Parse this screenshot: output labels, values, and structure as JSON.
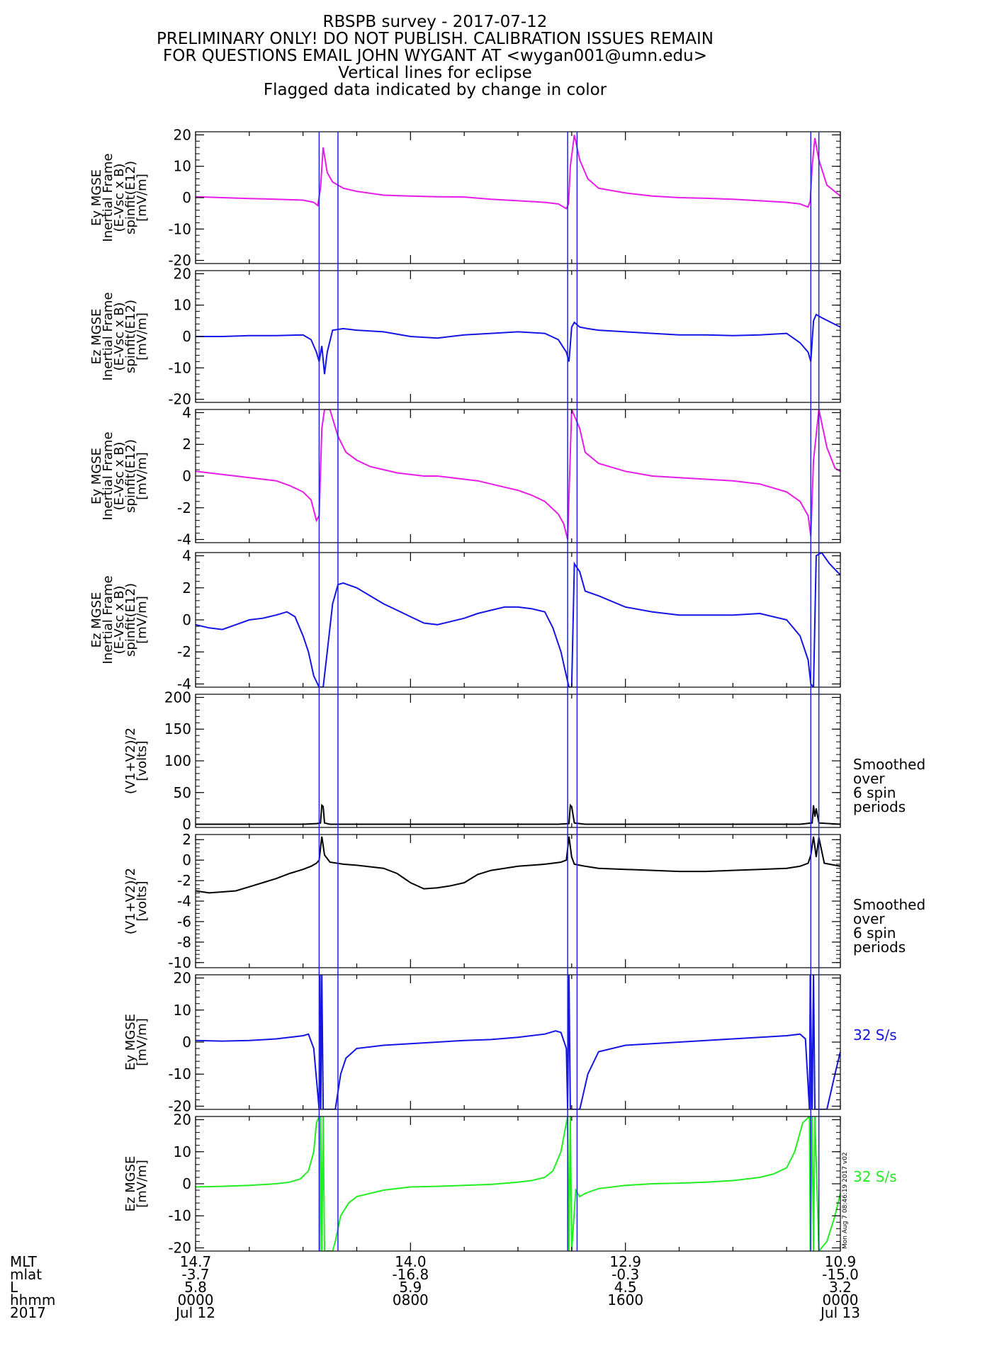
{
  "title_lines": [
    "RBSPB survey - 2017-07-12",
    "PRELIMINARY ONLY! DO NOT PUBLISH. CALIBRATION ISSUES REMAIN",
    "FOR QUESTIONS EMAIL JOHN WYGANT AT <wygan001@umn.edu>",
    "Vertical lines for eclipse",
    "Flagged data indicated by change in color"
  ],
  "time_axis": {
    "range_hours": [
      0,
      24
    ],
    "label_rows": [
      "MLT",
      "mlat",
      "L",
      "hhmm",
      "2017"
    ],
    "ticks": [
      {
        "hour": 0,
        "values": [
          "14.7",
          "-3.7",
          "5.8",
          "0000",
          "Jul 12"
        ]
      },
      {
        "hour": 8,
        "values": [
          "14.0",
          "-16.8",
          "5.9",
          "0800",
          ""
        ]
      },
      {
        "hour": 16,
        "values": [
          "12.9",
          "-0.3",
          "4.5",
          "1600",
          ""
        ]
      },
      {
        "hour": 24,
        "values": [
          "10.9",
          "-15.0",
          "3.2",
          "0000",
          "Jul 13"
        ]
      }
    ]
  },
  "eclipse_color": "#2020e0",
  "eclipse_hours": [
    4.6,
    5.3,
    13.85,
    14.2,
    22.9,
    23.2
  ],
  "stamp": "Mon Aug  7 08:46:19 2017 v02",
  "chart_data": [
    {
      "type": "line",
      "color": "#e81ce8",
      "ylabel": [
        "Ey MGSE",
        "Inertial Frame",
        "(E-Vsc x B)",
        "spinfit(E12)",
        "[mV/m]"
      ],
      "ylim": [
        -21,
        21
      ],
      "ticks": [
        -20,
        -10,
        0,
        10,
        20
      ],
      "note": "",
      "note_color": "",
      "series": [
        {
          "x": [
            0,
            1,
            2,
            3,
            4,
            4.4,
            4.55,
            4.65,
            4.75,
            4.9,
            5.1,
            5.5,
            6,
            7,
            8,
            9,
            10,
            11,
            12,
            13,
            13.5,
            13.8,
            13.88,
            13.95,
            14.1,
            14.3,
            14.6,
            15,
            16,
            17,
            18,
            19,
            20,
            21,
            22,
            22.5,
            22.8,
            22.88,
            22.95,
            23.05,
            23.2,
            23.5,
            24
          ],
          "y": [
            0.3,
            0,
            -0.3,
            -0.5,
            -0.8,
            -1.5,
            -2.5,
            3,
            16,
            8,
            5,
            3,
            2,
            0.8,
            0.5,
            0.3,
            0.2,
            -0.5,
            -1,
            -1.5,
            -2,
            -3.5,
            -2,
            10,
            20,
            12,
            6,
            3,
            1.5,
            0.5,
            0,
            -0.2,
            -0.5,
            -1,
            -1.5,
            -2,
            -3,
            -1,
            10,
            19,
            12,
            4,
            0.5
          ]
        }
      ]
    },
    {
      "type": "line",
      "color": "#1414e6",
      "ylabel": [
        "Ez MGSE",
        "Inertial Frame",
        "(E-Vsc x B)",
        "spinfit(E12)",
        "[mV/m]"
      ],
      "ylim": [
        -21,
        21
      ],
      "ticks": [
        -20,
        -10,
        0,
        10,
        20
      ],
      "note": "",
      "note_color": "",
      "series": [
        {
          "x": [
            0,
            1,
            2,
            3,
            4,
            4.3,
            4.5,
            4.6,
            4.7,
            4.8,
            4.9,
            5.1,
            5.5,
            6,
            7,
            8,
            9,
            10,
            11,
            12,
            13,
            13.5,
            13.8,
            13.9,
            14.0,
            14.1,
            14.3,
            14.6,
            15,
            16,
            17,
            18,
            19,
            20,
            21,
            22,
            22.5,
            22.8,
            22.9,
            23.0,
            23.1,
            23.3,
            24
          ],
          "y": [
            0,
            0,
            0.3,
            0.3,
            0.5,
            -1,
            -5,
            -8,
            -3,
            -12,
            -5,
            2,
            2.5,
            2,
            1.5,
            0,
            -0.5,
            0.5,
            1,
            1.5,
            1,
            -1,
            -5,
            -8,
            3,
            4.5,
            3,
            2.5,
            2,
            1.5,
            1,
            0.5,
            0.5,
            0.3,
            0.5,
            1,
            -2,
            -5,
            -8,
            5,
            7,
            6,
            3
          ]
        }
      ]
    },
    {
      "type": "line",
      "color": "#e81ce8",
      "ylabel": [
        "Ey MGSE",
        "Inertial Frame",
        "(E-Vsc x B)",
        "spinfit(E12)",
        "[mV/m]"
      ],
      "ylim": [
        -4.2,
        4.2
      ],
      "ticks": [
        -4,
        -2,
        0,
        2,
        4
      ],
      "note": "",
      "note_color": "",
      "series": [
        {
          "x": [
            0,
            0.5,
            1,
            1.5,
            2,
            2.5,
            3,
            3.5,
            4,
            4.3,
            4.5,
            4.6,
            4.7,
            4.8,
            5.0,
            5.3,
            5.6,
            6,
            6.5,
            7,
            7.5,
            8,
            8.5,
            9,
            9.5,
            10,
            10.5,
            11,
            11.5,
            12,
            12.5,
            13,
            13.5,
            13.7,
            13.85,
            14.0,
            14.3,
            14.5,
            15,
            16,
            17,
            18,
            19,
            20,
            21,
            22,
            22.5,
            22.8,
            22.9,
            23.0,
            23.2,
            23.5,
            23.8,
            24
          ],
          "y": [
            0.3,
            0.2,
            0.1,
            0,
            -0.1,
            -0.2,
            -0.3,
            -0.6,
            -1,
            -1.5,
            -2.8,
            -2.5,
            3,
            4.2,
            4.2,
            2.5,
            1.5,
            1,
            0.6,
            0.4,
            0.2,
            0.1,
            0,
            0,
            -0.1,
            -0.2,
            -0.3,
            -0.5,
            -0.7,
            -0.9,
            -1.2,
            -1.6,
            -2.4,
            -3,
            -4,
            4.2,
            3,
            1.5,
            0.8,
            0.3,
            0,
            -0.1,
            -0.2,
            -0.3,
            -0.5,
            -1,
            -1.6,
            -2.5,
            -3.8,
            1,
            4.2,
            1.8,
            0.5,
            0.3
          ]
        }
      ]
    },
    {
      "type": "line",
      "color": "#1414e6",
      "ylabel": [
        "Ez MGSE",
        "Inertial Frame",
        "(E-Vsc x B)",
        "spinfit(E12)",
        "[mV/m]"
      ],
      "ylim": [
        -4.2,
        4.2
      ],
      "ticks": [
        -4,
        -2,
        0,
        2,
        4
      ],
      "note": "",
      "note_color": "",
      "series": [
        {
          "x": [
            0,
            0.5,
            1,
            1.5,
            2,
            2.5,
            3,
            3.4,
            3.7,
            4,
            4.2,
            4.4,
            4.6,
            4.75,
            4.9,
            5.1,
            5.3,
            5.5,
            6,
            6.5,
            7,
            7.5,
            8,
            8.5,
            9,
            9.5,
            10,
            10.5,
            11,
            11.5,
            12,
            12.5,
            13,
            13.3,
            13.6,
            13.8,
            13.9,
            14.0,
            14.1,
            14.3,
            14.5,
            15,
            16,
            17,
            18,
            19,
            20,
            21,
            22,
            22.5,
            22.8,
            22.9,
            23.0,
            23.1,
            23.3,
            23.6,
            24
          ],
          "y": [
            -0.3,
            -0.5,
            -0.6,
            -0.3,
            0,
            0.1,
            0.3,
            0.5,
            0.2,
            -1,
            -2,
            -3.5,
            -4.2,
            -4.2,
            -2,
            1,
            2.2,
            2.3,
            2,
            1.5,
            1,
            0.6,
            0.2,
            -0.2,
            -0.3,
            -0.1,
            0.1,
            0.4,
            0.6,
            0.8,
            0.8,
            0.7,
            0.5,
            -0.5,
            -2,
            -3.5,
            -4.2,
            -4.2,
            3.5,
            3,
            1.8,
            1.5,
            0.8,
            0.5,
            0.3,
            0.3,
            0.3,
            0.4,
            0,
            -1,
            -2.5,
            -4,
            -4.2,
            4,
            4.2,
            3.5,
            2.8
          ]
        }
      ]
    },
    {
      "type": "line",
      "color": "#000000",
      "ylabel": [
        "(V1+V2)/2",
        "[volts]"
      ],
      "ylim": [
        -5,
        205
      ],
      "ticks": [
        0,
        50,
        100,
        150,
        200
      ],
      "note": "Smoothed over 6 spin periods",
      "note_color": "#000000",
      "series": [
        {
          "x": [
            0,
            4,
            4.5,
            4.65,
            4.7,
            4.75,
            4.8,
            5,
            8,
            12,
            13.5,
            13.9,
            13.95,
            14.0,
            14.1,
            14.5,
            20,
            22.5,
            22.95,
            23.0,
            23.05,
            23.1,
            23.2,
            24
          ],
          "y": [
            0,
            0,
            1,
            2,
            30,
            28,
            2,
            0,
            0,
            0,
            0,
            1,
            30,
            28,
            2,
            0,
            0,
            0,
            2,
            30,
            12,
            25,
            2,
            0
          ]
        }
      ]
    },
    {
      "type": "line",
      "color": "#000000",
      "ylabel": [
        "(V1+V2)/2",
        "[volts]"
      ],
      "ylim": [
        -10.5,
        2.5
      ],
      "ticks": [
        -10,
        -8,
        -6,
        -4,
        -2,
        0,
        2
      ],
      "note": "Smoothed over 6 spin periods",
      "note_color": "#000000",
      "series": [
        {
          "x": [
            0,
            0.5,
            1,
            1.5,
            2,
            2.5,
            3,
            3.5,
            4,
            4.3,
            4.5,
            4.6,
            4.7,
            4.8,
            5,
            5.5,
            6,
            7,
            7.5,
            8,
            8.5,
            9,
            9.5,
            10,
            10.5,
            11,
            11.5,
            12,
            12.5,
            13,
            13.3,
            13.6,
            13.8,
            13.9,
            14.0,
            14.1,
            14.3,
            14.5,
            15,
            16,
            17,
            18,
            19,
            20,
            21,
            22,
            22.5,
            22.8,
            22.9,
            23.0,
            23.1,
            23.2,
            23.4,
            24
          ],
          "y": [
            -3,
            -3.2,
            -3.1,
            -3,
            -2.6,
            -2.2,
            -1.8,
            -1.3,
            -0.9,
            -0.6,
            -0.3,
            0,
            2.3,
            0.5,
            -0.2,
            -0.4,
            -0.5,
            -0.8,
            -1.3,
            -2.2,
            -2.8,
            -2.7,
            -2.5,
            -2.2,
            -1.4,
            -1.0,
            -0.8,
            -0.6,
            -0.5,
            -0.4,
            -0.3,
            -0.2,
            0,
            2.3,
            0.3,
            -0.4,
            -0.5,
            -0.6,
            -0.8,
            -0.9,
            -1.0,
            -1.1,
            -1.1,
            -1.0,
            -0.9,
            -0.8,
            -0.6,
            -0.3,
            0.5,
            2.3,
            0.3,
            2.2,
            -0.3,
            -0.6
          ]
        }
      ]
    },
    {
      "type": "line",
      "color": "#1414e6",
      "ylabel": [
        "Ey MGSE",
        "[mV/m]"
      ],
      "ylim": [
        -21,
        21
      ],
      "ticks": [
        -20,
        -10,
        0,
        10,
        20
      ],
      "note": "32 S/s",
      "note_color": "#1414e6",
      "series": [
        {
          "x": [
            0,
            1,
            2,
            3,
            4,
            4.2,
            4.4,
            4.6,
            4.63,
            4.66,
            4.7,
            4.75,
            4.8,
            5.2,
            5.4,
            5.6,
            6,
            7,
            8,
            9,
            10,
            11,
            12,
            13,
            13.4,
            13.6,
            13.8,
            13.85,
            13.9,
            13.95,
            14.3,
            14.6,
            15,
            16,
            17,
            18,
            19,
            20,
            21,
            22,
            22.5,
            22.7,
            22.85,
            22.88,
            22.95,
            23.0,
            23.05,
            23.5,
            23.8,
            24
          ],
          "y": [
            0.5,
            0.3,
            0.5,
            1,
            2,
            2.5,
            -2,
            -21,
            21,
            -21,
            21,
            -21,
            -21,
            -21,
            -10,
            -5,
            -2,
            -1,
            -0.5,
            0,
            0.5,
            0.8,
            1.5,
            2.5,
            3.5,
            3,
            -2,
            -21,
            21,
            -21,
            -21,
            -10,
            -3,
            -1,
            -0.5,
            0,
            0.5,
            1,
            1.5,
            2,
            2.5,
            1,
            -21,
            21,
            -21,
            21,
            -21,
            -21,
            -10,
            -3
          ]
        }
      ]
    },
    {
      "type": "line",
      "color": "#22ee22",
      "ylabel": [
        "Ez MGSE",
        "[mV/m]"
      ],
      "ylim": [
        -21,
        21
      ],
      "ticks": [
        -20,
        -10,
        0,
        10,
        20
      ],
      "note": "32 S/s",
      "note_color": "#22ee22",
      "series": [
        {
          "x": [
            0,
            1,
            2,
            3,
            3.5,
            3.9,
            4.2,
            4.4,
            4.5,
            4.6,
            4.63,
            4.66,
            4.7,
            4.75,
            4.8,
            5.0,
            5.1,
            5.2,
            5.4,
            5.7,
            6,
            7,
            8,
            9,
            10,
            11,
            12,
            12.5,
            13,
            13.3,
            13.6,
            13.8,
            13.85,
            13.9,
            13.95,
            14.0,
            14.15,
            14.3,
            14.5,
            15,
            16,
            17,
            18,
            19,
            20,
            21,
            21.5,
            22,
            22.3,
            22.6,
            22.85,
            22.88,
            22.95,
            23.0,
            23.05,
            23.2,
            23.5,
            23.8,
            24
          ],
          "y": [
            -1,
            -0.8,
            -0.5,
            0,
            0.5,
            1.5,
            4,
            10,
            19,
            21,
            -21,
            21,
            -21,
            21,
            -21,
            -21,
            -21,
            -18,
            -10,
            -6,
            -4,
            -2,
            -1,
            -0.8,
            -0.5,
            -0.2,
            0.5,
            1,
            2,
            4,
            10,
            19,
            21,
            -21,
            21,
            -21,
            -2,
            -4,
            -3,
            -1.5,
            -0.5,
            0,
            0.2,
            0.5,
            1,
            2,
            3,
            5,
            10,
            19,
            21,
            -21,
            21,
            -21,
            21,
            -21,
            -18,
            -10,
            -3
          ]
        }
      ]
    }
  ]
}
